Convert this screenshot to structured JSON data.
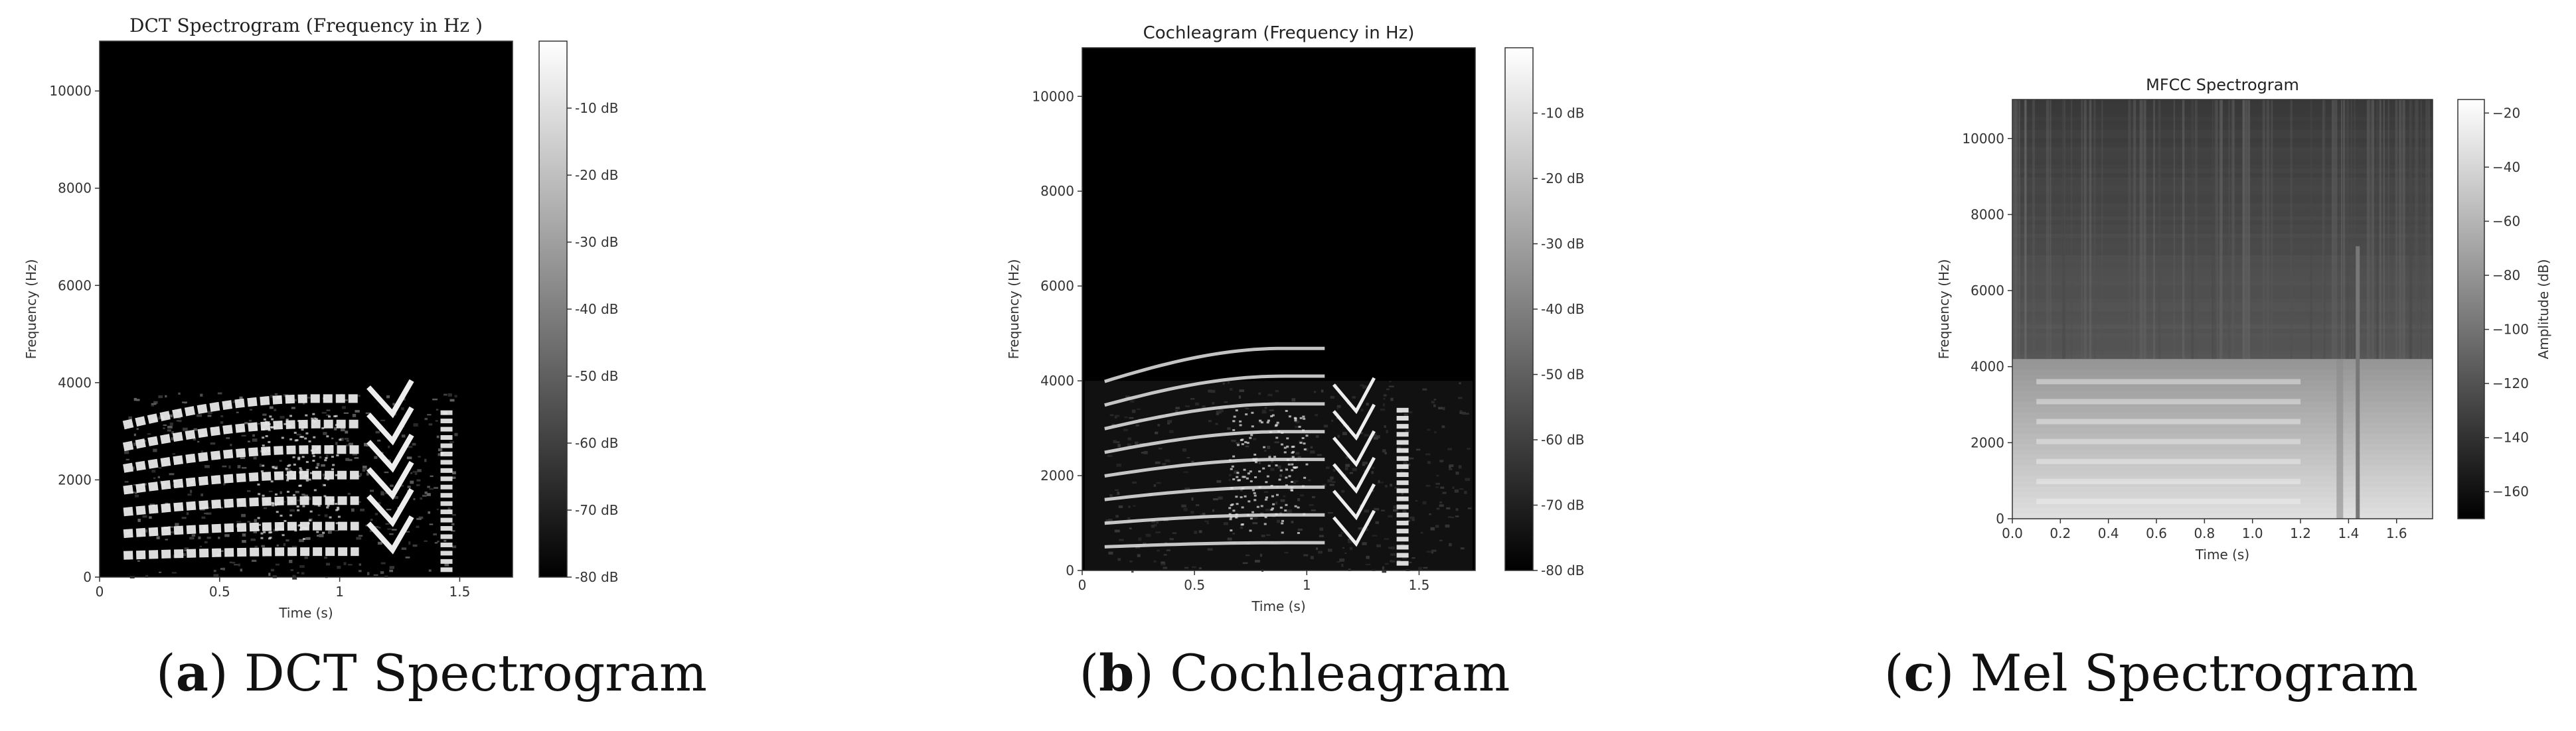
{
  "colors": {
    "black": "#000000",
    "white": "#ffffff",
    "axis": "#333333"
  },
  "panels": [
    {
      "caption": {
        "letter": "a",
        "open": "(",
        "close": ")",
        "text": "DCT Spectrogram"
      },
      "chart_data": {
        "type": "heatmap",
        "title": "DCT Spectrogram (Frequency in Hz )",
        "xlabel": "Time (s)",
        "ylabel": "Frequency (Hz)",
        "xlim": [
          0,
          1.72
        ],
        "ylim": [
          0,
          11025
        ],
        "xticks": [
          0,
          0.5,
          1,
          1.5
        ],
        "xtick_labels": [
          "0",
          "0.5",
          "1",
          "1.5"
        ],
        "yticks": [
          0,
          2000,
          4000,
          6000,
          8000,
          10000
        ],
        "ytick_labels": [
          "0",
          "2000",
          "4000",
          "6000",
          "8000",
          "10000"
        ],
        "colorbar": {
          "label": "",
          "range": [
            -80,
            0
          ],
          "ticks": [
            -10,
            -20,
            -30,
            -40,
            -50,
            -60,
            -70,
            -80
          ],
          "tick_labels": [
            "-10 dB",
            "-20 dB",
            "-30 dB",
            "-40 dB",
            "-50 dB",
            "-60 dB",
            "-70 dB",
            "-80 dB"
          ]
        },
        "colormap": "gray",
        "content_band_hz": [
          0,
          3800
        ],
        "grid": false
      }
    },
    {
      "caption": {
        "letter": "b",
        "open": "(",
        "close": ")",
        "text": "Cochleagram"
      },
      "chart_data": {
        "type": "heatmap",
        "title": "Cochleagram (Frequency in Hz)",
        "xlabel": "Time (s)",
        "ylabel": "Frequency (Hz)",
        "xlim": [
          0,
          1.75
        ],
        "ylim": [
          0,
          11025
        ],
        "xticks": [
          0,
          0.5,
          1,
          1.5
        ],
        "xtick_labels": [
          "0",
          "0.5",
          "1",
          "1.5"
        ],
        "yticks": [
          0,
          2000,
          4000,
          6000,
          8000,
          10000
        ],
        "ytick_labels": [
          "0",
          "2000",
          "4000",
          "6000",
          "8000",
          "10000"
        ],
        "colorbar": {
          "label": "",
          "range": [
            -80,
            0
          ],
          "ticks": [
            -10,
            -20,
            -30,
            -40,
            -50,
            -60,
            -70,
            -80
          ],
          "tick_labels": [
            "-10 dB",
            "-20 dB",
            "-30 dB",
            "-40 dB",
            "-50 dB",
            "-60 dB",
            "-70 dB",
            "-80 dB"
          ]
        },
        "colormap": "gray",
        "content_band_hz": [
          0,
          4000
        ],
        "grid": false
      }
    },
    {
      "caption": {
        "letter": "c",
        "open": "(",
        "close": ")",
        "text": "Mel Spectrogram"
      },
      "chart_data": {
        "type": "heatmap",
        "title": "MFCC Spectrogram",
        "xlabel": "Time (s)",
        "ylabel": "Frequency (Hz)",
        "xlim": [
          0,
          1.75
        ],
        "ylim": [
          0,
          11025
        ],
        "xticks": [
          0,
          0.2,
          0.4,
          0.6,
          0.8,
          1.0,
          1.2,
          1.4,
          1.6
        ],
        "xtick_labels": [
          "0.0",
          "0.2",
          "0.4",
          "0.6",
          "0.8",
          "1.0",
          "1.2",
          "1.4",
          "1.6"
        ],
        "yticks": [
          0,
          2000,
          4000,
          6000,
          8000,
          10000
        ],
        "ytick_labels": [
          "0",
          "2000",
          "4000",
          "6000",
          "8000",
          "10000"
        ],
        "colorbar": {
          "label": "Amplitude (dB)",
          "range": [
            -170,
            -15
          ],
          "ticks": [
            -20,
            -40,
            -60,
            -80,
            -100,
            -120,
            -140,
            -160
          ],
          "tick_labels": [
            "−20",
            "−40",
            "−60",
            "−80",
            "−100",
            "−120",
            "−140",
            "−160"
          ]
        },
        "colormap": "gray",
        "content_band_hz": [
          0,
          4200
        ],
        "grid": false
      }
    }
  ]
}
